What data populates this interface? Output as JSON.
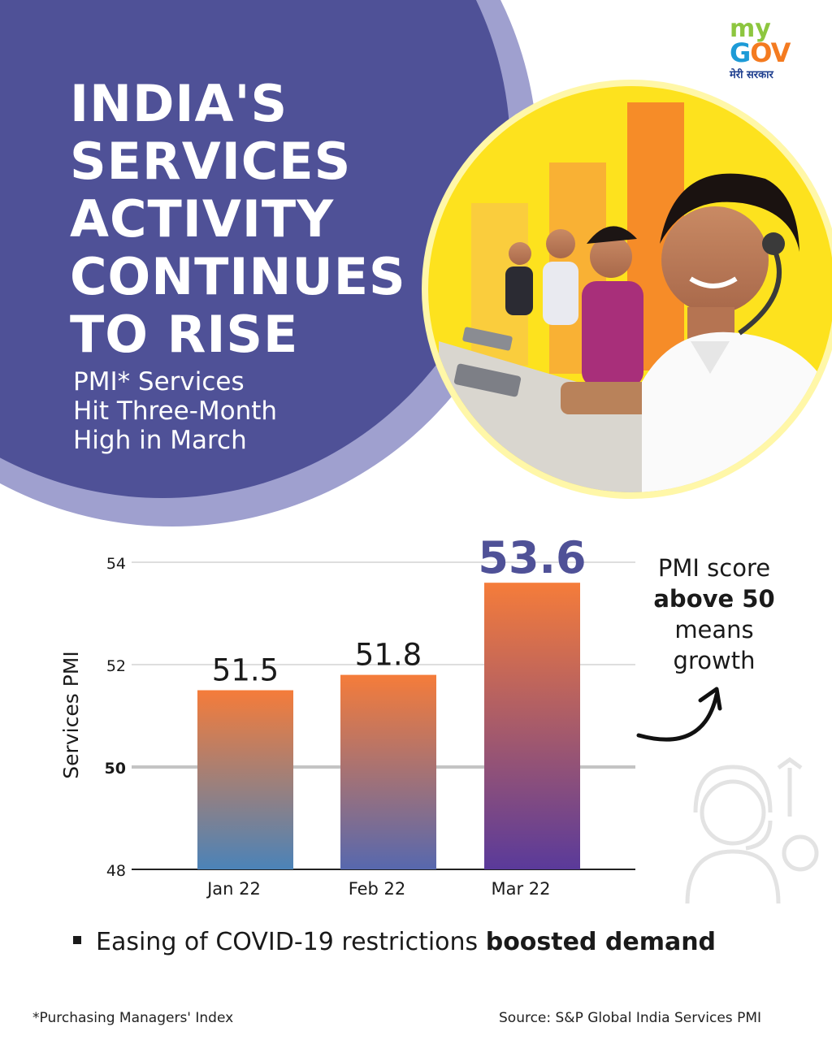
{
  "logo": {
    "my": "my",
    "gov_g": "G",
    "gov_ov": "OV",
    "hindi": "मेरी सरकार"
  },
  "headline": [
    "INDIA'S",
    "SERVICES",
    "ACTIVITY",
    "CONTINUES",
    "TO RISE"
  ],
  "subheadline": [
    "PMI* Services",
    "Hit Three-Month",
    "High in March"
  ],
  "note": {
    "line1": "PMI score",
    "line2": "above 50",
    "line3": "means",
    "line4": "growth"
  },
  "bullet": {
    "text": "Easing of COVID-19 restrictions ",
    "bold": "boosted demand"
  },
  "footnote": "*Purchasing Managers' Index",
  "source": "Source: S&P Global India Services PMI",
  "colors": {
    "panel": "#4f5197",
    "panel_ring": "#9fa0cf",
    "highlight": "#4f5197",
    "bar_top": "#f57c3a",
    "bar_bottom_jan": "#4b83b8",
    "bar_bottom_mar": "#5a3a9a",
    "photo_bg": "#fde21e"
  },
  "chart_data": {
    "type": "bar",
    "categories": [
      "Jan 22",
      "Feb 22",
      "Mar 22"
    ],
    "values": [
      51.5,
      51.8,
      53.6
    ],
    "data_labels": [
      "51.5",
      "51.8",
      "53.6"
    ],
    "ylabel": "Services PMI",
    "yticks": [
      48,
      50,
      52,
      54
    ],
    "ylim": [
      48,
      54
    ],
    "threshold": 50,
    "grid": true
  }
}
